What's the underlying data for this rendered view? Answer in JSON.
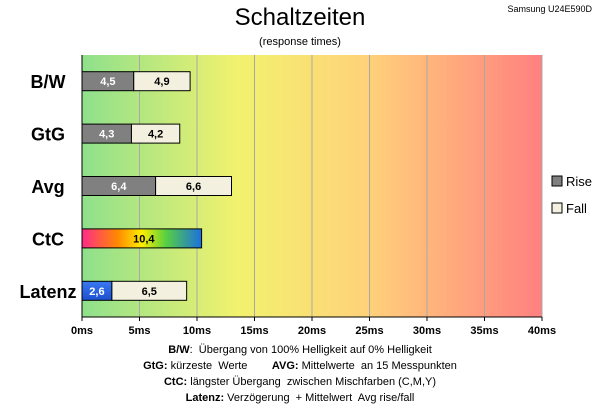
{
  "header": {
    "title": "Schaltzeiten",
    "subtitle": "(response times)",
    "model": "Samsung U24E590D"
  },
  "colors": {
    "rise": "#808080",
    "fall": "#f3f0df",
    "gradient": [
      "#8ee08c",
      "#f2f26e",
      "#ffd27a",
      "#ff8080"
    ]
  },
  "chart_data": {
    "type": "bar",
    "orientation": "horizontal",
    "stacked": true,
    "categories": [
      "B/W",
      "GtG",
      "Avg",
      "CtC",
      "Latenz"
    ],
    "series": [
      {
        "name": "Rise",
        "values": [
          4.5,
          4.3,
          6.4,
          null,
          2.6
        ]
      },
      {
        "name": "Fall",
        "values": [
          4.9,
          4.2,
          6.6,
          null,
          6.5
        ]
      }
    ],
    "single_values": {
      "CtC": 10.4
    },
    "value_labels": {
      "Rise": [
        "4,5",
        "4,3",
        "6,4",
        "",
        "2,6"
      ],
      "Fall": [
        "4,9",
        "4,2",
        "6,6",
        "",
        "6,5"
      ],
      "CtC": "10,4"
    },
    "x_ticks": [
      0,
      5,
      10,
      15,
      20,
      25,
      30,
      35,
      40
    ],
    "x_tick_labels": [
      "0ms",
      "5ms",
      "10ms",
      "15ms",
      "20ms",
      "25ms",
      "30ms",
      "35ms",
      "40ms"
    ],
    "xlim": [
      0,
      40
    ],
    "grid": true,
    "legend": [
      "Rise",
      "Fall"
    ],
    "legend_position": "right"
  },
  "notes": {
    "line1_bold": "B/W",
    "line1": ":  Übergang von 100% Helligkeit auf 0% Helligkeit",
    "line2_bold_a": "GtG:",
    "line2_a": " kürzeste  Werte        ",
    "line2_bold_b": "AVG:",
    "line2_b": " Mittelwerte  an 15 Messpunkten",
    "line3_bold": "CtC:",
    "line3": " längster Übergang  zwischen Mischfarben (C,M,Y)",
    "line4_bold": "Latenz:",
    "line4": " Verzögerung  + Mittelwert  Avg rise/fall"
  }
}
